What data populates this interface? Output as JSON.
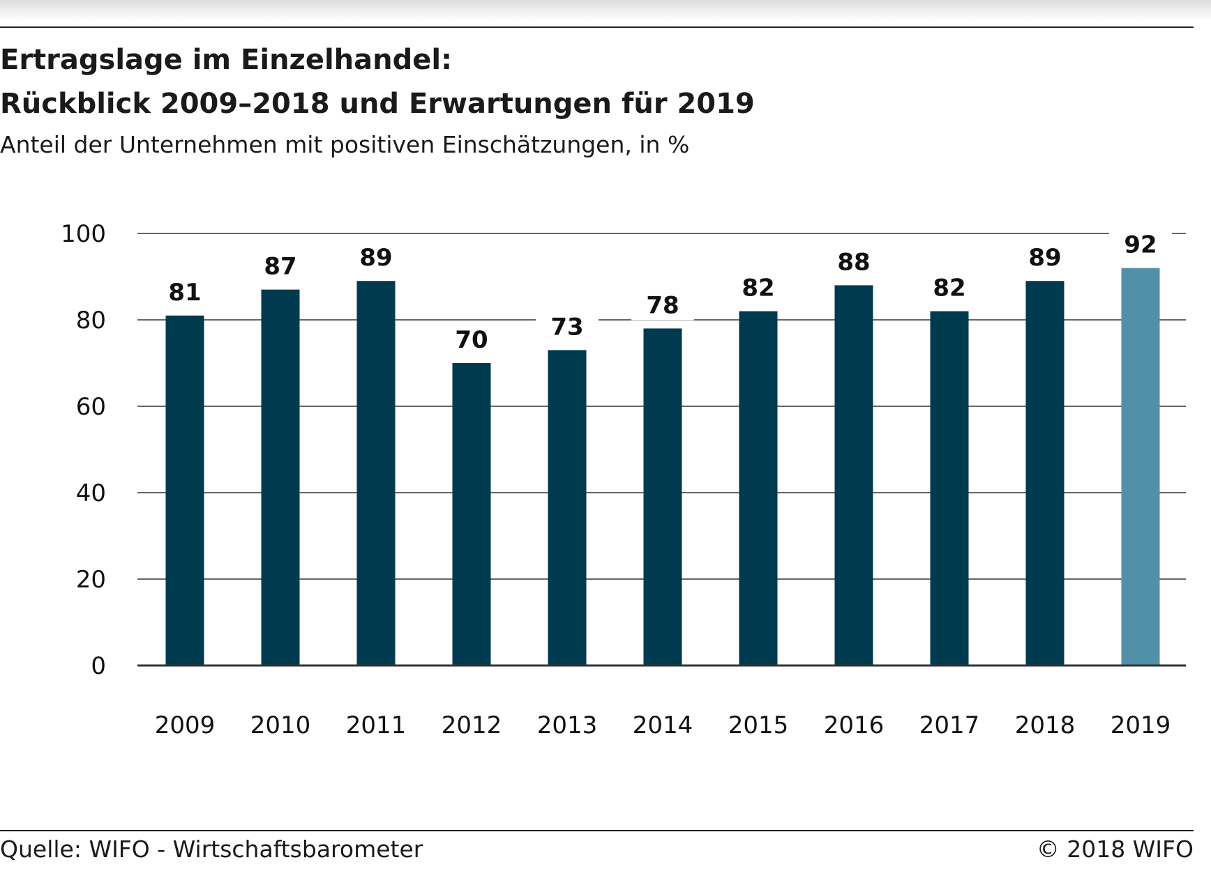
{
  "header": {
    "title_line1": "Ertragslage im Einzelhandel:",
    "title_line2": "Rückblick 2009–2018 und Erwartungen für 2019",
    "subtitle": "Anteil der Unternehmen mit positiven Einschätzungen, in %"
  },
  "footer": {
    "source": "Quelle: WIFO - Wirtschaftsbarometer",
    "copyright": "© 2018 WIFO"
  },
  "colors": {
    "bar_actual": "#003a4f",
    "bar_expected": "#5190a9",
    "grid": "#333333",
    "axis": "#333333"
  },
  "chart_data": {
    "type": "bar",
    "categories": [
      "2009",
      "2010",
      "2011",
      "2012",
      "2013",
      "2014",
      "2015",
      "2016",
      "2017",
      "2018",
      "2019"
    ],
    "values": [
      81,
      87,
      89,
      70,
      73,
      78,
      82,
      88,
      82,
      89,
      92
    ],
    "data_labels": [
      "81",
      "87",
      "89",
      "70",
      "73",
      "78",
      "82",
      "88",
      "82",
      "89",
      "92"
    ],
    "highlight_last": true,
    "ylim": [
      0,
      100
    ],
    "yticks": [
      0,
      20,
      40,
      60,
      80,
      100
    ],
    "ytick_labels": [
      "0",
      "20",
      "40",
      "60",
      "80",
      "100"
    ],
    "grid": true,
    "legend": "none"
  }
}
